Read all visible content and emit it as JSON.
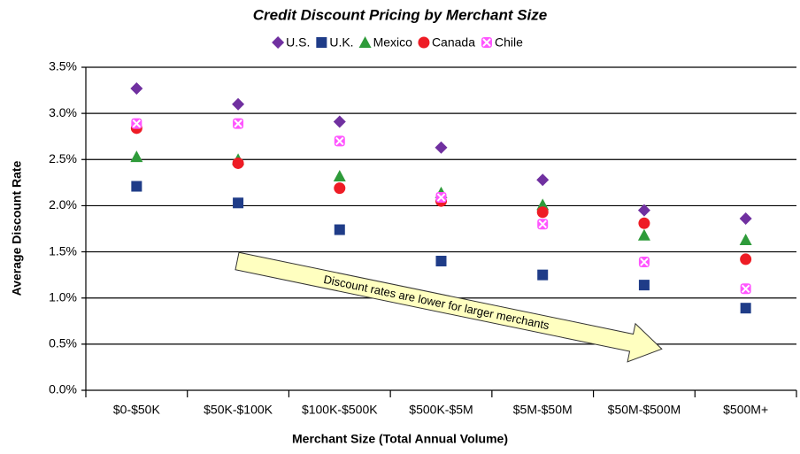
{
  "chart_data": {
    "type": "scatter",
    "title": "Credit Discount Pricing by Merchant Size",
    "x_label": "Merchant Size (Total Annual Volume)",
    "y_label": "Average Discount Rate",
    "annotation": "Discount rates are lower for larger merchants",
    "categories": [
      "$0-$50K",
      "$50K-$100K",
      "$100K-$500K",
      "$500K-$5M",
      "$5M-$50M",
      "$50M-$500M",
      "$500M+"
    ],
    "series": [
      {
        "name": "U.S.",
        "color": "#7030a0",
        "marker": "diamond",
        "values": [
          3.27,
          3.1,
          2.91,
          2.63,
          2.28,
          1.95,
          1.86
        ]
      },
      {
        "name": "U.K.",
        "color": "#1f3c88",
        "marker": "square",
        "values": [
          2.21,
          2.03,
          1.74,
          1.4,
          1.25,
          1.14,
          0.89
        ]
      },
      {
        "name": "Mexico",
        "color": "#2e9b3a",
        "marker": "triangle",
        "values": [
          2.53,
          2.5,
          2.32,
          2.14,
          2.01,
          1.68,
          1.63
        ]
      },
      {
        "name": "Canada",
        "color": "#ee1c25",
        "marker": "circle",
        "values": [
          2.84,
          2.46,
          2.19,
          2.05,
          1.93,
          1.81,
          1.42
        ]
      },
      {
        "name": "Chile",
        "color": "#ff55ff",
        "marker": "cross",
        "values": [
          2.89,
          2.89,
          2.7,
          2.09,
          1.8,
          1.39,
          1.1
        ]
      }
    ],
    "ylim": [
      0,
      3.5
    ],
    "yticks": [
      {
        "value": 0,
        "label": "0.0%"
      },
      {
        "value": 0.5,
        "label": "0.5%"
      },
      {
        "value": 1,
        "label": "1.0%"
      },
      {
        "value": 1.5,
        "label": "1.5%"
      },
      {
        "value": 2,
        "label": "2.0%"
      },
      {
        "value": 2.5,
        "label": "2.5%"
      },
      {
        "value": 3,
        "label": "3.0%"
      },
      {
        "value": 3.5,
        "label": "3.5%"
      }
    ],
    "grid": true,
    "legend": "top"
  }
}
